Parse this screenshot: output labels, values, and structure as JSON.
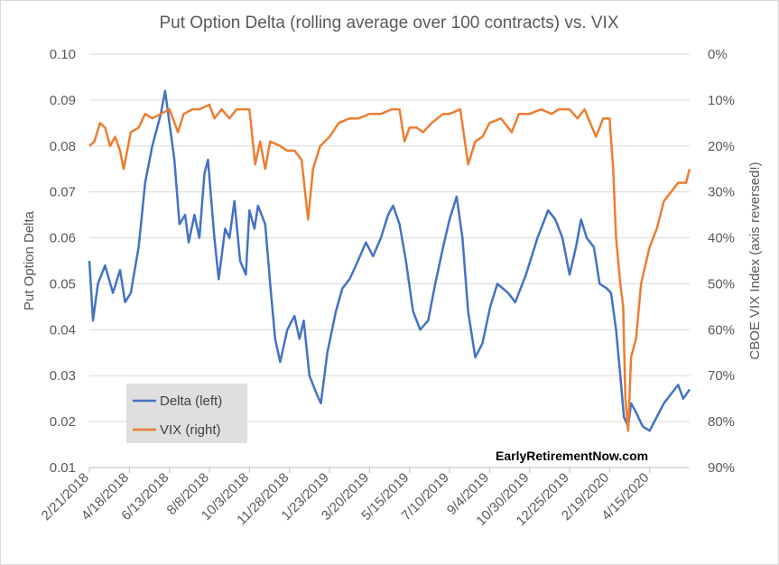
{
  "chart_data": {
    "type": "line",
    "title": "Put Option Delta (rolling average over 100 contracts) vs. VIX",
    "ylabel_left": "Put Option Delta",
    "ylabel_right": "CBOE VIX Index (axis reversed!)",
    "ylim_left": [
      0.01,
      0.1
    ],
    "ylim_right": [
      0,
      90
    ],
    "right_axis_reversed": true,
    "yticks_left": [
      "0.10",
      "0.09",
      "0.08",
      "0.07",
      "0.06",
      "0.05",
      "0.04",
      "0.03",
      "0.02",
      "0.01"
    ],
    "yticks_right": [
      "0%",
      "10%",
      "20%",
      "30%",
      "40%",
      "50%",
      "60%",
      "70%",
      "80%",
      "90%"
    ],
    "x_ticks": [
      "2/21/2018",
      "4/18/2018",
      "6/13/2018",
      "8/8/2018",
      "10/3/2018",
      "11/28/2018",
      "1/23/2019",
      "3/20/2019",
      "5/15/2019",
      "7/10/2019",
      "9/4/2019",
      "10/30/2019",
      "12/25/2019",
      "2/19/2020",
      "4/15/2020"
    ],
    "x_range": [
      "2/21/2018",
      "6/10/2020"
    ],
    "grid": "horizontal",
    "legend_position": "bottom-left",
    "annotation": "EarlyRetirementNow.com",
    "series": [
      {
        "name": "Delta (left)",
        "axis": "left",
        "color": "#4472C4",
        "points": [
          [
            "2/21/2018",
            0.055
          ],
          [
            "2/26/2018",
            0.042
          ],
          [
            "3/5/2018",
            0.05
          ],
          [
            "3/15/2018",
            0.054
          ],
          [
            "3/26/2018",
            0.048
          ],
          [
            "4/5/2018",
            0.053
          ],
          [
            "4/12/2018",
            0.046
          ],
          [
            "4/20/2018",
            0.048
          ],
          [
            "5/1/2018",
            0.058
          ],
          [
            "5/10/2018",
            0.072
          ],
          [
            "5/20/2018",
            0.08
          ],
          [
            "6/1/2018",
            0.087
          ],
          [
            "6/7/2018",
            0.092
          ],
          [
            "6/13/2018",
            0.085
          ],
          [
            "6/20/2018",
            0.077
          ],
          [
            "6/27/2018",
            0.063
          ],
          [
            "7/5/2018",
            0.065
          ],
          [
            "7/10/2018",
            0.059
          ],
          [
            "7/18/2018",
            0.065
          ],
          [
            "7/25/2018",
            0.06
          ],
          [
            "8/1/2018",
            0.074
          ],
          [
            "8/6/2018",
            0.077
          ],
          [
            "8/15/2018",
            0.06
          ],
          [
            "8/21/2018",
            0.051
          ],
          [
            "8/30/2018",
            0.062
          ],
          [
            "9/5/2018",
            0.06
          ],
          [
            "9/12/2018",
            0.068
          ],
          [
            "9/20/2018",
            0.055
          ],
          [
            "9/28/2018",
            0.052
          ],
          [
            "10/3/2018",
            0.066
          ],
          [
            "10/10/2018",
            0.062
          ],
          [
            "10/15/2018",
            0.067
          ],
          [
            "10/25/2018",
            0.063
          ],
          [
            "11/1/2018",
            0.05
          ],
          [
            "11/8/2018",
            0.038
          ],
          [
            "11/15/2018",
            0.033
          ],
          [
            "11/25/2018",
            0.04
          ],
          [
            "12/5/2018",
            0.043
          ],
          [
            "12/12/2018",
            0.038
          ],
          [
            "12/18/2018",
            0.042
          ],
          [
            "12/26/2018",
            0.03
          ],
          [
            "1/5/2019",
            0.026
          ],
          [
            "1/11/2019",
            0.024
          ],
          [
            "1/20/2019",
            0.035
          ],
          [
            "2/1/2019",
            0.044
          ],
          [
            "2/10/2019",
            0.049
          ],
          [
            "2/20/2019",
            0.051
          ],
          [
            "3/1/2019",
            0.054
          ],
          [
            "3/15/2019",
            0.059
          ],
          [
            "3/25/2019",
            0.056
          ],
          [
            "4/5/2019",
            0.06
          ],
          [
            "4/15/2019",
            0.065
          ],
          [
            "4/22/2019",
            0.067
          ],
          [
            "5/1/2019",
            0.063
          ],
          [
            "5/10/2019",
            0.055
          ],
          [
            "5/20/2019",
            0.044
          ],
          [
            "5/30/2019",
            0.04
          ],
          [
            "6/10/2019",
            0.042
          ],
          [
            "6/20/2019",
            0.05
          ],
          [
            "7/1/2019",
            0.058
          ],
          [
            "7/10/2019",
            0.064
          ],
          [
            "7/20/2019",
            0.069
          ],
          [
            "7/28/2019",
            0.06
          ],
          [
            "8/5/2019",
            0.044
          ],
          [
            "8/15/2019",
            0.034
          ],
          [
            "8/25/2019",
            0.037
          ],
          [
            "9/5/2019",
            0.045
          ],
          [
            "9/15/2019",
            0.05
          ],
          [
            "9/30/2019",
            0.048
          ],
          [
            "10/10/2019",
            0.046
          ],
          [
            "10/25/2019",
            0.052
          ],
          [
            "11/10/2019",
            0.06
          ],
          [
            "11/25/2019",
            0.066
          ],
          [
            "12/5/2019",
            0.064
          ],
          [
            "12/15/2019",
            0.06
          ],
          [
            "12/25/2019",
            0.052
          ],
          [
            "1/3/2020",
            0.058
          ],
          [
            "1/10/2020",
            0.064
          ],
          [
            "1/18/2020",
            0.06
          ],
          [
            "1/28/2020",
            0.058
          ],
          [
            "2/5/2020",
            0.05
          ],
          [
            "2/15/2020",
            0.049
          ],
          [
            "2/21/2020",
            0.048
          ],
          [
            "2/28/2020",
            0.04
          ],
          [
            "3/5/2020",
            0.03
          ],
          [
            "3/10/2020",
            0.021
          ],
          [
            "3/16/2020",
            0.019
          ],
          [
            "3/20/2020",
            0.024
          ],
          [
            "3/27/2020",
            0.022
          ],
          [
            "4/5/2020",
            0.019
          ],
          [
            "4/15/2020",
            0.018
          ],
          [
            "4/25/2020",
            0.021
          ],
          [
            "5/5/2020",
            0.024
          ],
          [
            "5/15/2020",
            0.026
          ],
          [
            "5/25/2020",
            0.028
          ],
          [
            "6/1/2020",
            0.025
          ],
          [
            "6/10/2020",
            0.027
          ]
        ]
      },
      {
        "name": "VIX (right)",
        "axis": "right",
        "color": "#ED7D31",
        "points": [
          [
            "2/21/2018",
            20
          ],
          [
            "2/28/2018",
            19
          ],
          [
            "3/8/2018",
            15
          ],
          [
            "3/15/2018",
            16
          ],
          [
            "3/22/2018",
            20
          ],
          [
            "3/29/2018",
            18
          ],
          [
            "4/5/2018",
            21
          ],
          [
            "4/10/2018",
            25
          ],
          [
            "4/20/2018",
            17
          ],
          [
            "5/1/2018",
            16
          ],
          [
            "5/10/2018",
            13
          ],
          [
            "5/20/2018",
            14
          ],
          [
            "6/1/2018",
            13
          ],
          [
            "6/13/2018",
            12
          ],
          [
            "6/25/2018",
            17
          ],
          [
            "7/3/2018",
            13
          ],
          [
            "7/15/2018",
            12
          ],
          [
            "7/25/2018",
            12
          ],
          [
            "8/8/2018",
            11
          ],
          [
            "8/15/2018",
            14
          ],
          [
            "8/25/2018",
            12
          ],
          [
            "9/5/2018",
            14
          ],
          [
            "9/15/2018",
            12
          ],
          [
            "9/28/2018",
            12
          ],
          [
            "10/3/2018",
            12
          ],
          [
            "10/11/2018",
            24
          ],
          [
            "10/18/2018",
            19
          ],
          [
            "10/25/2018",
            25
          ],
          [
            "11/1/2018",
            19
          ],
          [
            "11/15/2018",
            20
          ],
          [
            "11/25/2018",
            21
          ],
          [
            "12/5/2018",
            21
          ],
          [
            "12/15/2018",
            23
          ],
          [
            "12/24/2018",
            36
          ],
          [
            "12/31/2018",
            25
          ],
          [
            "1/10/2019",
            20
          ],
          [
            "1/23/2019",
            18
          ],
          [
            "2/5/2019",
            15
          ],
          [
            "2/20/2019",
            14
          ],
          [
            "3/5/2019",
            14
          ],
          [
            "3/20/2019",
            13
          ],
          [
            "4/5/2019",
            13
          ],
          [
            "4/20/2019",
            12
          ],
          [
            "5/1/2019",
            12
          ],
          [
            "5/8/2019",
            19
          ],
          [
            "5/15/2019",
            16
          ],
          [
            "5/25/2019",
            16
          ],
          [
            "6/3/2019",
            17
          ],
          [
            "6/15/2019",
            15
          ],
          [
            "7/1/2019",
            13
          ],
          [
            "7/10/2019",
            13
          ],
          [
            "7/25/2019",
            12
          ],
          [
            "8/5/2019",
            24
          ],
          [
            "8/15/2019",
            19
          ],
          [
            "8/25/2019",
            18
          ],
          [
            "9/4/2019",
            15
          ],
          [
            "9/20/2019",
            14
          ],
          [
            "10/5/2019",
            17
          ],
          [
            "10/15/2019",
            13
          ],
          [
            "10/30/2019",
            13
          ],
          [
            "11/15/2019",
            12
          ],
          [
            "11/30/2019",
            13
          ],
          [
            "12/10/2019",
            12
          ],
          [
            "12/25/2019",
            12
          ],
          [
            "1/5/2020",
            14
          ],
          [
            "1/15/2020",
            12
          ],
          [
            "1/31/2020",
            18
          ],
          [
            "2/10/2020",
            14
          ],
          [
            "2/19/2020",
            14
          ],
          [
            "2/24/2020",
            25
          ],
          [
            "2/28/2020",
            40
          ],
          [
            "3/5/2020",
            50
          ],
          [
            "3/9/2020",
            55
          ],
          [
            "3/12/2020",
            75
          ],
          [
            "3/16/2020",
            82
          ],
          [
            "3/20/2020",
            66
          ],
          [
            "3/27/2020",
            62
          ],
          [
            "4/3/2020",
            50
          ],
          [
            "4/15/2020",
            42
          ],
          [
            "4/25/2020",
            38
          ],
          [
            "5/5/2020",
            32
          ],
          [
            "5/15/2020",
            30
          ],
          [
            "5/25/2020",
            28
          ],
          [
            "6/1/2020",
            28
          ],
          [
            "6/5/2020",
            28
          ],
          [
            "6/10/2020",
            25
          ]
        ]
      }
    ]
  }
}
